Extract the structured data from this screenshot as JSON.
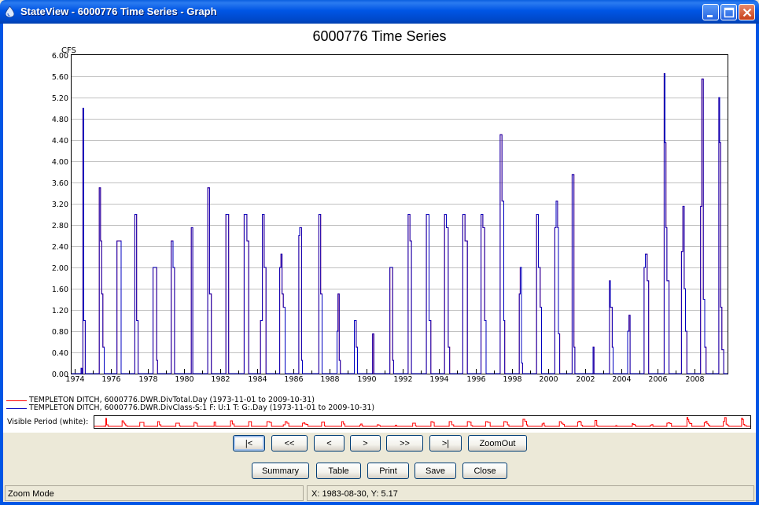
{
  "window": {
    "title": "StateView - 6000776 Time Series - Graph",
    "buttons": {
      "minimize": "minimize",
      "maximize": "maximize",
      "close": "close"
    }
  },
  "chart_data": {
    "type": "line",
    "title": "6000776 Time Series",
    "ylabel": "CFS",
    "xlabel": "",
    "ylim": [
      0,
      6.0
    ],
    "xlim": [
      1973.83,
      2009.83
    ],
    "yticks": [
      "0.00",
      "0.40",
      "0.80",
      "1.20",
      "1.60",
      "2.00",
      "2.40",
      "2.80",
      "3.20",
      "3.60",
      "4.00",
      "4.40",
      "4.80",
      "5.20",
      "5.60",
      "6.00"
    ],
    "xticks": [
      "1974",
      "1976",
      "1978",
      "1980",
      "1982",
      "1984",
      "1986",
      "1988",
      "1990",
      "1992",
      "1994",
      "1996",
      "1998",
      "2000",
      "2002",
      "2004",
      "2006",
      "2008"
    ],
    "grid": "horizontal",
    "series": [
      {
        "name": "TEMPLETON DITCH, 6000776.DWR.DivTotal.Day (1973-11-01 to 2009-10-31)",
        "color": "#ff0000",
        "note_values_equal_to_divclass": true
      },
      {
        "name": "TEMPLETON DITCH, 6000776.DWR.DivClass-S:1 F: U:1 T: G:.Day (1973-11-01 to 2009-10-31)",
        "color": "#0000c0",
        "points": [
          [
            1974.3,
            0
          ],
          [
            1974.35,
            0.1
          ],
          [
            1974.4,
            0
          ],
          [
            1974.45,
            5.0
          ],
          [
            1974.5,
            1.0
          ],
          [
            1974.58,
            0
          ],
          [
            1975.35,
            3.5
          ],
          [
            1975.42,
            2.5
          ],
          [
            1975.48,
            1.5
          ],
          [
            1975.55,
            0.5
          ],
          [
            1975.62,
            0
          ],
          [
            1976.32,
            2.5
          ],
          [
            1976.55,
            0
          ],
          [
            1977.3,
            3.0
          ],
          [
            1977.4,
            1.0
          ],
          [
            1977.48,
            0
          ],
          [
            1978.3,
            2.0
          ],
          [
            1978.5,
            0.25
          ],
          [
            1978.55,
            0
          ],
          [
            1979.3,
            2.5
          ],
          [
            1979.4,
            2.0
          ],
          [
            1979.48,
            0
          ],
          [
            1980.4,
            2.75
          ],
          [
            1980.48,
            0
          ],
          [
            1981.3,
            3.5
          ],
          [
            1981.4,
            1.5
          ],
          [
            1981.5,
            0
          ],
          [
            1982.3,
            3.0
          ],
          [
            1982.45,
            0
          ],
          [
            1983.3,
            3.0
          ],
          [
            1983.45,
            2.5
          ],
          [
            1983.55,
            0
          ],
          [
            1984.2,
            1.0
          ],
          [
            1984.3,
            3.0
          ],
          [
            1984.4,
            2.0
          ],
          [
            1984.5,
            0
          ],
          [
            1985.25,
            2.0
          ],
          [
            1985.32,
            2.25
          ],
          [
            1985.38,
            1.5
          ],
          [
            1985.45,
            1.25
          ],
          [
            1985.55,
            0
          ],
          [
            1986.3,
            2.6
          ],
          [
            1986.35,
            2.75
          ],
          [
            1986.45,
            0.25
          ],
          [
            1986.5,
            0
          ],
          [
            1987.4,
            3.0
          ],
          [
            1987.5,
            1.5
          ],
          [
            1987.58,
            0
          ],
          [
            1988.4,
            0.8
          ],
          [
            1988.45,
            1.5
          ],
          [
            1988.52,
            0.25
          ],
          [
            1988.58,
            0
          ],
          [
            1989.35,
            1.0
          ],
          [
            1989.45,
            0.5
          ],
          [
            1989.52,
            0
          ],
          [
            1990.35,
            0.75
          ],
          [
            1990.42,
            0
          ],
          [
            1991.3,
            2.0
          ],
          [
            1991.45,
            0.25
          ],
          [
            1991.5,
            0
          ],
          [
            1992.3,
            3.0
          ],
          [
            1992.4,
            2.5
          ],
          [
            1992.48,
            0
          ],
          [
            1993.3,
            3.0
          ],
          [
            1993.45,
            1.0
          ],
          [
            1993.55,
            0
          ],
          [
            1994.3,
            3.0
          ],
          [
            1994.4,
            2.75
          ],
          [
            1994.5,
            0.5
          ],
          [
            1994.58,
            0
          ],
          [
            1995.3,
            3.0
          ],
          [
            1995.42,
            2.5
          ],
          [
            1995.55,
            0
          ],
          [
            1996.3,
            3.0
          ],
          [
            1996.4,
            2.75
          ],
          [
            1996.5,
            1.0
          ],
          [
            1996.58,
            0
          ],
          [
            1997.35,
            4.5
          ],
          [
            1997.45,
            3.25
          ],
          [
            1997.55,
            1.0
          ],
          [
            1997.6,
            0
          ],
          [
            1998.4,
            1.5
          ],
          [
            1998.45,
            2.0
          ],
          [
            1998.52,
            0.2
          ],
          [
            1998.58,
            0
          ],
          [
            1999.35,
            3.0
          ],
          [
            1999.45,
            2.0
          ],
          [
            1999.55,
            1.25
          ],
          [
            1999.62,
            0
          ],
          [
            2000.35,
            2.75
          ],
          [
            2000.42,
            3.25
          ],
          [
            2000.5,
            2.75
          ],
          [
            2000.55,
            0.75
          ],
          [
            2000.62,
            0
          ],
          [
            2001.3,
            3.75
          ],
          [
            2001.4,
            0.5
          ],
          [
            2001.45,
            0
          ],
          [
            2002.45,
            0.5
          ],
          [
            2002.5,
            0
          ],
          [
            2003.35,
            1.75
          ],
          [
            2003.4,
            1.25
          ],
          [
            2003.5,
            0.5
          ],
          [
            2003.55,
            0
          ],
          [
            2004.35,
            0.8
          ],
          [
            2004.42,
            1.1
          ],
          [
            2004.48,
            0
          ],
          [
            2005.25,
            2.0
          ],
          [
            2005.32,
            2.25
          ],
          [
            2005.42,
            1.75
          ],
          [
            2005.5,
            0
          ],
          [
            2006.35,
            5.65
          ],
          [
            2006.4,
            4.35
          ],
          [
            2006.45,
            2.75
          ],
          [
            2006.5,
            1.75
          ],
          [
            2006.62,
            0
          ],
          [
            2007.3,
            2.3
          ],
          [
            2007.38,
            3.15
          ],
          [
            2007.45,
            1.6
          ],
          [
            2007.52,
            0.8
          ],
          [
            2007.6,
            0
          ],
          [
            2008.35,
            3.15
          ],
          [
            2008.42,
            5.55
          ],
          [
            2008.5,
            1.4
          ],
          [
            2008.58,
            0.5
          ],
          [
            2008.65,
            0
          ],
          [
            2009.35,
            5.2
          ],
          [
            2009.4,
            4.35
          ],
          [
            2009.45,
            1.25
          ],
          [
            2009.52,
            0.45
          ],
          [
            2009.62,
            0
          ]
        ]
      }
    ]
  },
  "visible_period_label": "Visible Period (white):",
  "nav_buttons": [
    "|<",
    "<<",
    "<",
    ">",
    ">>",
    ">|",
    "ZoomOut"
  ],
  "action_buttons": [
    "Summary",
    "Table",
    "Print",
    "Save",
    "Close"
  ],
  "status": {
    "mode": "Zoom Mode",
    "coords": "X:  1983-08-30,  Y:  5.17"
  }
}
